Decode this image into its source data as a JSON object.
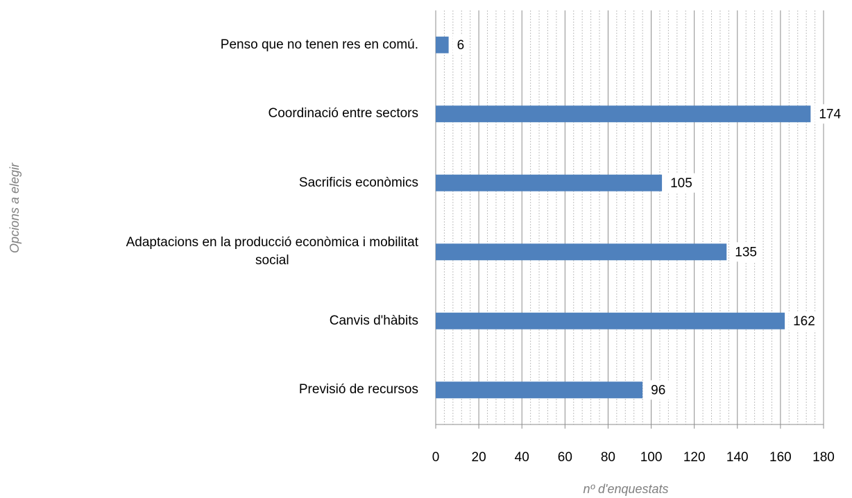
{
  "chart_data": {
    "type": "bar",
    "orientation": "horizontal",
    "x_label": "nº d'enquestats",
    "y_label": "Opcions a elegir",
    "categories": [
      "Penso que no tenen res en comú.",
      "Coordinació entre sectors",
      "Sacrificis econòmics",
      "Adaptacions en la producció econòmica i mobilitat\nsocial",
      "Canvis d'hàbits",
      "Previsió de recursos"
    ],
    "values": [
      6,
      174,
      105,
      135,
      162,
      96
    ],
    "color": "#4f81bd",
    "xlim": [
      0,
      180
    ],
    "xticks": [
      0,
      20,
      40,
      60,
      80,
      100,
      120,
      140,
      160,
      180
    ],
    "grid": true
  }
}
